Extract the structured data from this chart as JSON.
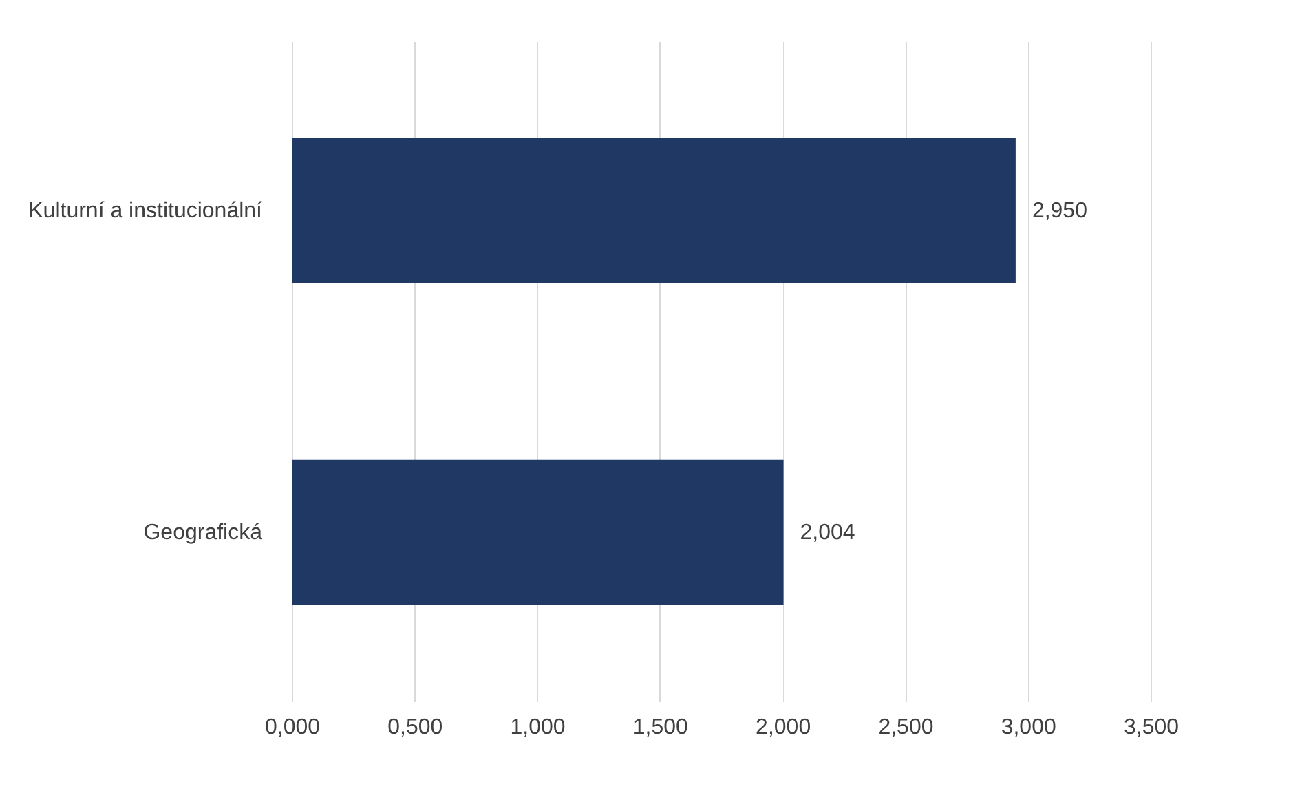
{
  "chart_data": {
    "type": "bar",
    "orientation": "horizontal",
    "categories": [
      "Kulturní a institucionální",
      "Geografická"
    ],
    "values": [
      2.95,
      2.004
    ],
    "value_labels": [
      "2,950",
      "2,004"
    ],
    "color": "#1f3864",
    "xlim": [
      0,
      3.5
    ],
    "xticks": [
      {
        "value": 0,
        "label": "0,000"
      },
      {
        "value": 0.5,
        "label": "0,500"
      },
      {
        "value": 1,
        "label": "1,000"
      },
      {
        "value": 1.5,
        "label": "1,500"
      },
      {
        "value": 2,
        "label": "2,000"
      },
      {
        "value": 2.5,
        "label": "2,500"
      },
      {
        "value": 3,
        "label": "3,000"
      },
      {
        "value": 3.5,
        "label": "3,500"
      }
    ],
    "grid": "x"
  }
}
